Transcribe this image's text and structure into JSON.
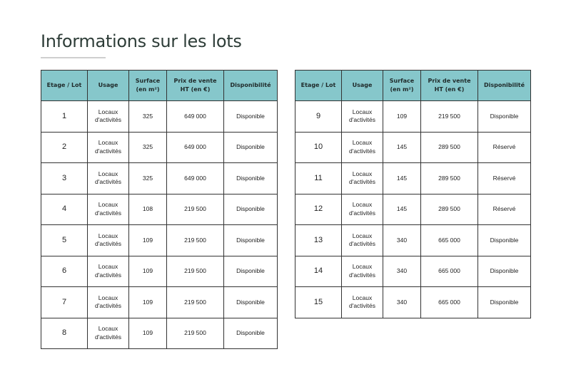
{
  "title": "Informations sur les lots",
  "colors": {
    "header_bg": "#86c7cb",
    "title": "#2e3d38",
    "border": "#333333"
  },
  "columns": [
    "Etage / Lot",
    "Usage",
    "Surface (en m²)",
    "Prix de vente HT (en €)",
    "Disponibilité"
  ],
  "tables": [
    {
      "rows": [
        {
          "lot": "1",
          "usage": "Locaux d'activités",
          "surface": "325",
          "prix": "649 000",
          "dispo": "Disponible"
        },
        {
          "lot": "2",
          "usage": "Locaux d'activités",
          "surface": "325",
          "prix": "649 000",
          "dispo": "Disponible"
        },
        {
          "lot": "3",
          "usage": "Locaux d'activités",
          "surface": "325",
          "prix": "649 000",
          "dispo": "Disponible"
        },
        {
          "lot": "4",
          "usage": "Locaux d'activités",
          "surface": "108",
          "prix": "219 500",
          "dispo": "Disponible"
        },
        {
          "lot": "5",
          "usage": "Locaux d'activités",
          "surface": "109",
          "prix": "219 500",
          "dispo": "Disponible"
        },
        {
          "lot": "6",
          "usage": "Locaux d'activités",
          "surface": "109",
          "prix": "219 500",
          "dispo": "Disponible"
        },
        {
          "lot": "7",
          "usage": "Locaux d'activités",
          "surface": "109",
          "prix": "219 500",
          "dispo": "Disponible"
        },
        {
          "lot": "8",
          "usage": "Locaux d'activités",
          "surface": "109",
          "prix": "219 500",
          "dispo": "Disponible"
        }
      ]
    },
    {
      "rows": [
        {
          "lot": "9",
          "usage": "Locaux d'activités",
          "surface": "109",
          "prix": "219 500",
          "dispo": "Disponible"
        },
        {
          "lot": "10",
          "usage": "Locaux d'activités",
          "surface": "145",
          "prix": "289 500",
          "dispo": "Réservé"
        },
        {
          "lot": "11",
          "usage": "Locaux d'activités",
          "surface": "145",
          "prix": "289 500",
          "dispo": "Réservé"
        },
        {
          "lot": "12",
          "usage": "Locaux d'activités",
          "surface": "145",
          "prix": "289 500",
          "dispo": "Réservé"
        },
        {
          "lot": "13",
          "usage": "Locaux d'activités",
          "surface": "340",
          "prix": "665 000",
          "dispo": "Disponible"
        },
        {
          "lot": "14",
          "usage": "Locaux d'activités",
          "surface": "340",
          "prix": "665 000",
          "dispo": "Disponible"
        },
        {
          "lot": "15",
          "usage": "Locaux d'activités",
          "surface": "340",
          "prix": "665 000",
          "dispo": "Disponible"
        }
      ]
    }
  ]
}
